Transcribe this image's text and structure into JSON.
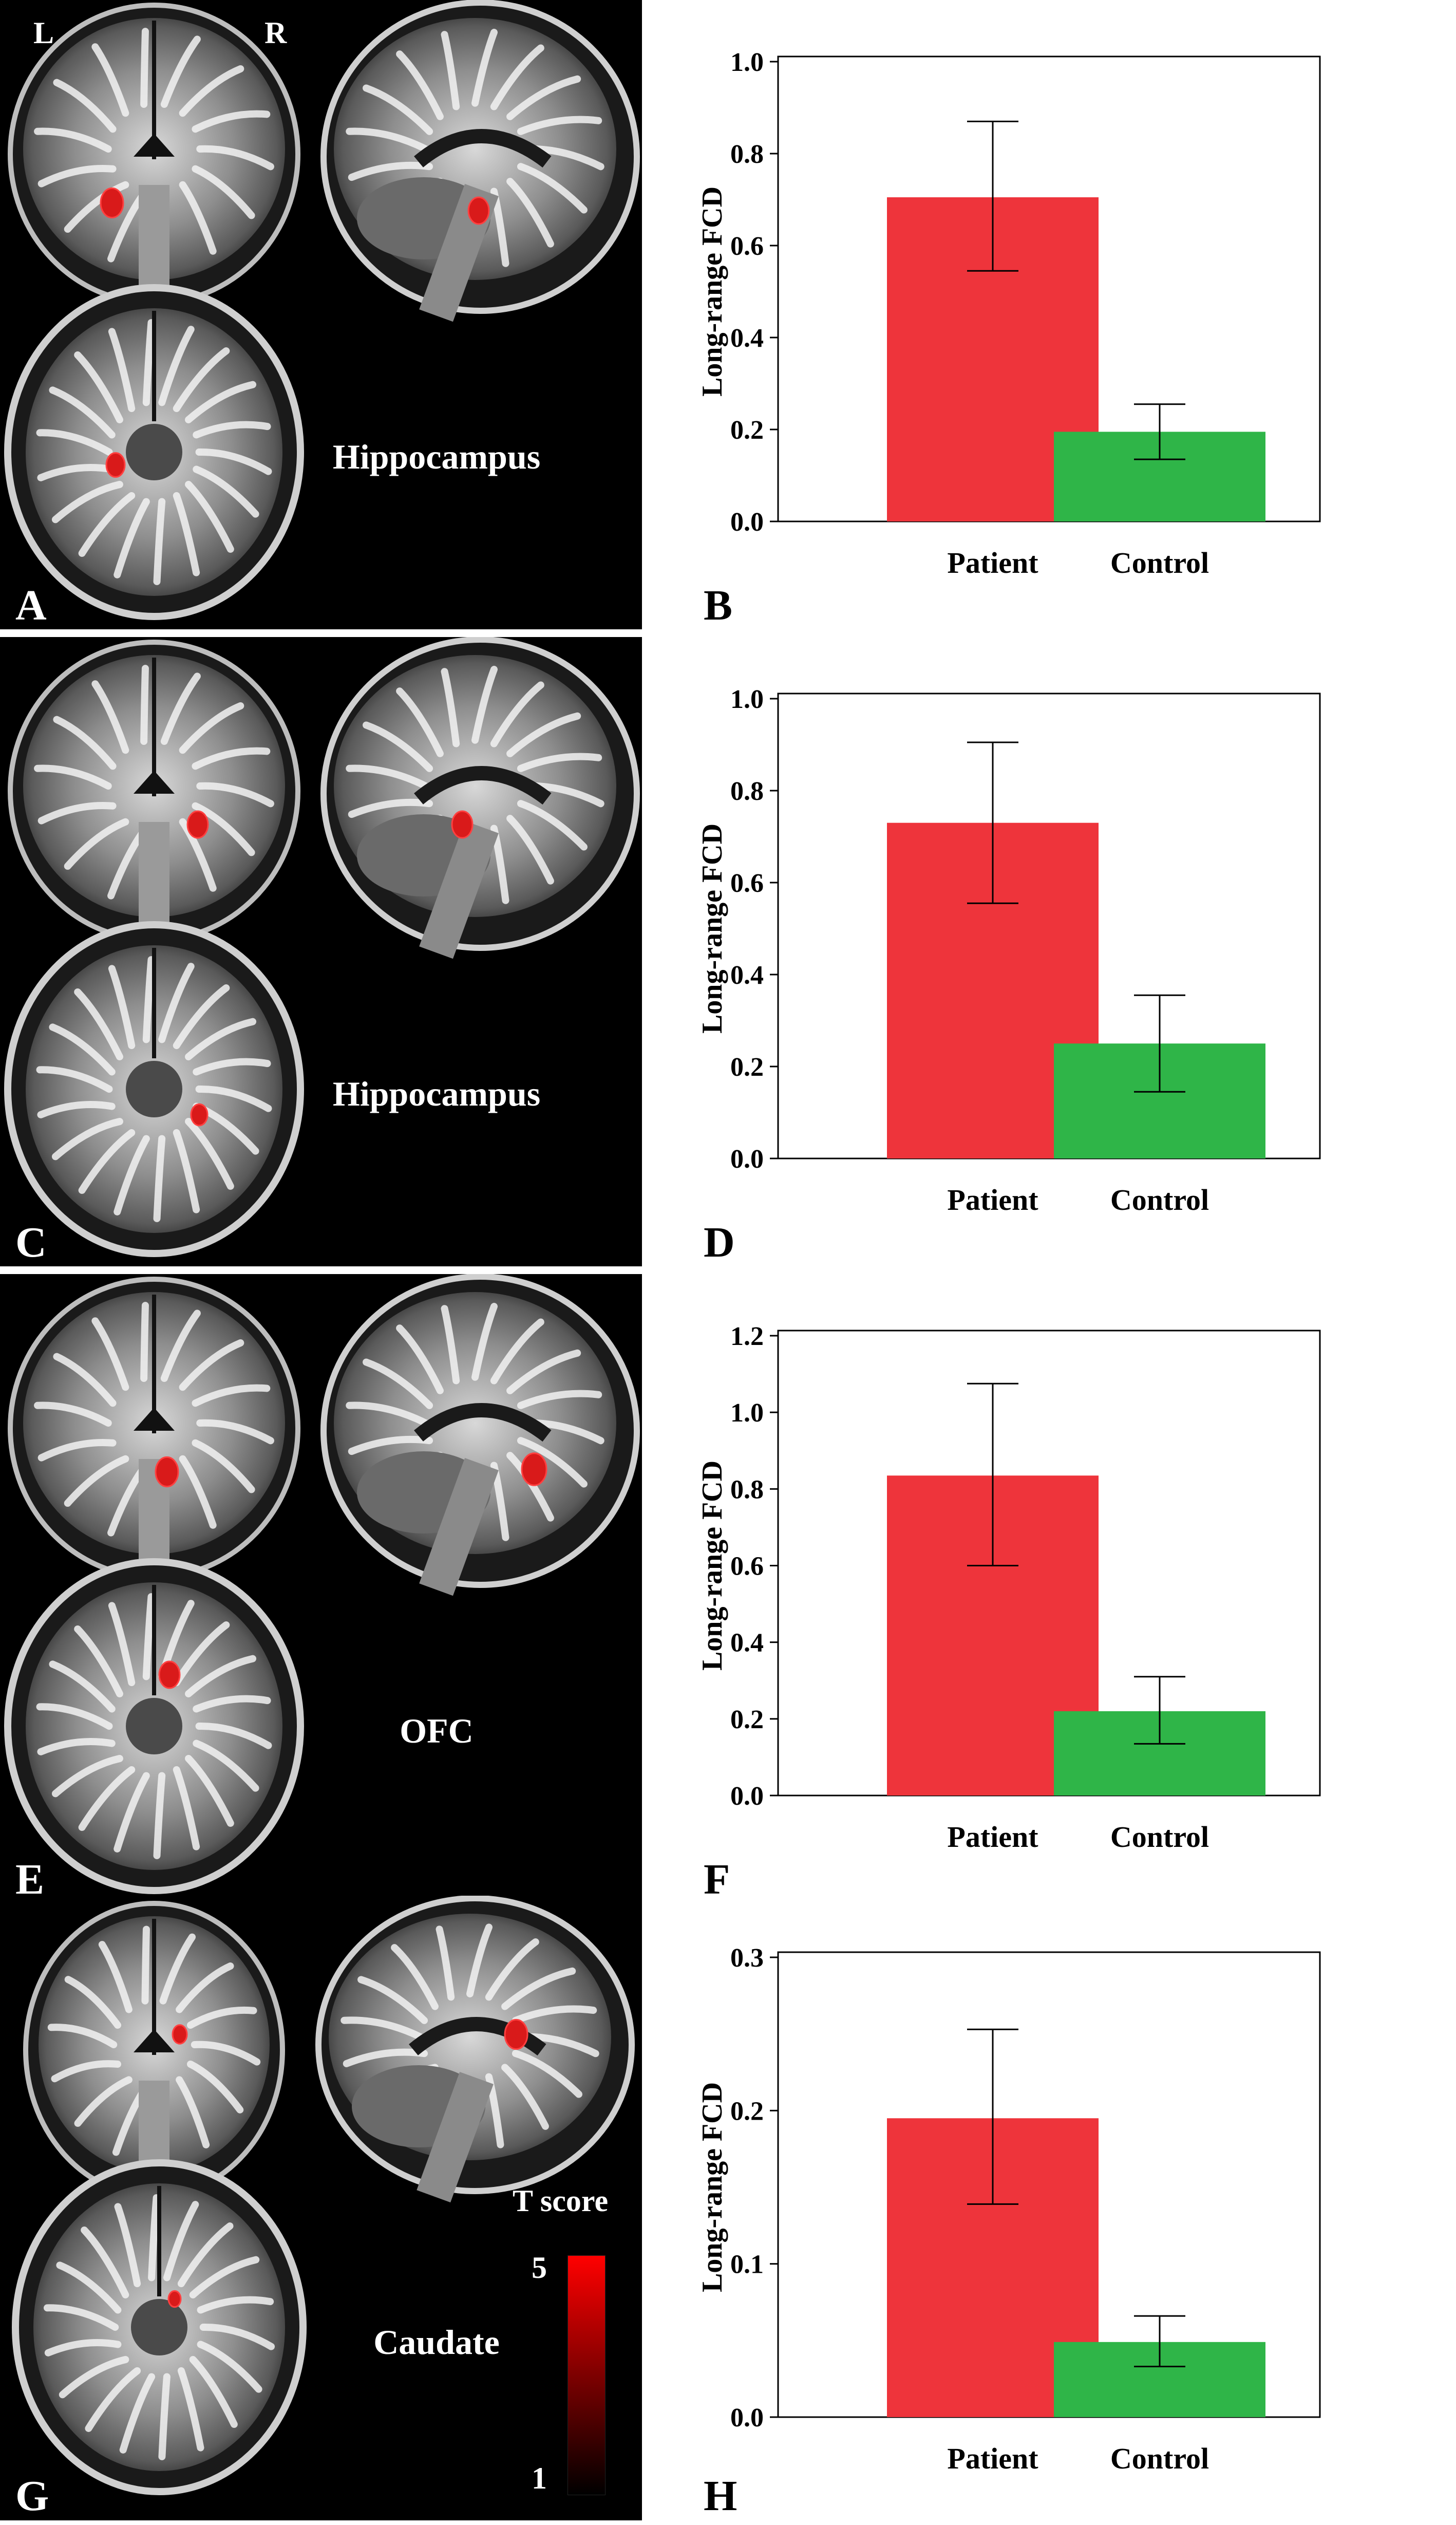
{
  "panels": [
    {
      "brain_letter": "A",
      "chart_letter": "B",
      "region": "Hippocampus"
    },
    {
      "brain_letter": "C",
      "chart_letter": "D",
      "region": "Hippocampus"
    },
    {
      "brain_letter": "E",
      "chart_letter": "F",
      "region": "OFC"
    },
    {
      "brain_letter": "G",
      "chart_letter": "H",
      "region": "Caudate"
    }
  ],
  "orientation": {
    "left": "L",
    "right": "R"
  },
  "colorbar": {
    "title": "T score",
    "max_label": "5",
    "min_label": "1",
    "top_color": "#ff0000",
    "bottom_color": "#000000"
  },
  "colors": {
    "patient": "#ee343b",
    "control": "#2fb548",
    "activation": "#d91a1a"
  },
  "chart_data": [
    {
      "type": "bar",
      "categories": [
        "Patient",
        "Control"
      ],
      "values": [
        0.705,
        0.195
      ],
      "error": [
        [
          0.545,
          0.87
        ],
        [
          0.135,
          0.255
        ]
      ],
      "ylabel": "Long-range FCD",
      "ylim": [
        0,
        1.0
      ],
      "yticks": [
        "0.0",
        "0.2",
        "0.4",
        "0.6",
        "0.8",
        "1.0"
      ]
    },
    {
      "type": "bar",
      "categories": [
        "Patient",
        "Control"
      ],
      "values": [
        0.73,
        0.25
      ],
      "error": [
        [
          0.555,
          0.905
        ],
        [
          0.145,
          0.355
        ]
      ],
      "ylabel": "Long-range FCD",
      "ylim": [
        0,
        1.0
      ],
      "yticks": [
        "0.0",
        "0.2",
        "0.4",
        "0.6",
        "0.8",
        "1.0"
      ]
    },
    {
      "type": "bar",
      "categories": [
        "Patient",
        "Control"
      ],
      "values": [
        0.835,
        0.22
      ],
      "error": [
        [
          0.6,
          1.075
        ],
        [
          0.135,
          0.31
        ]
      ],
      "ylabel": "Long-range FCD",
      "ylim": [
        0,
        1.2
      ],
      "yticks": [
        "0.0",
        "0.2",
        "0.4",
        "0.6",
        "0.8",
        "1.0",
        "1.2"
      ]
    },
    {
      "type": "bar",
      "categories": [
        "Patient",
        "Control"
      ],
      "values": [
        0.195,
        0.049
      ],
      "error": [
        [
          0.139,
          0.253
        ],
        [
          0.033,
          0.066
        ]
      ],
      "ylabel": "Long-range FCD",
      "ylim": [
        0,
        0.3
      ],
      "yticks": [
        "0.0",
        "0.1",
        "0.2",
        "0.3"
      ]
    }
  ]
}
